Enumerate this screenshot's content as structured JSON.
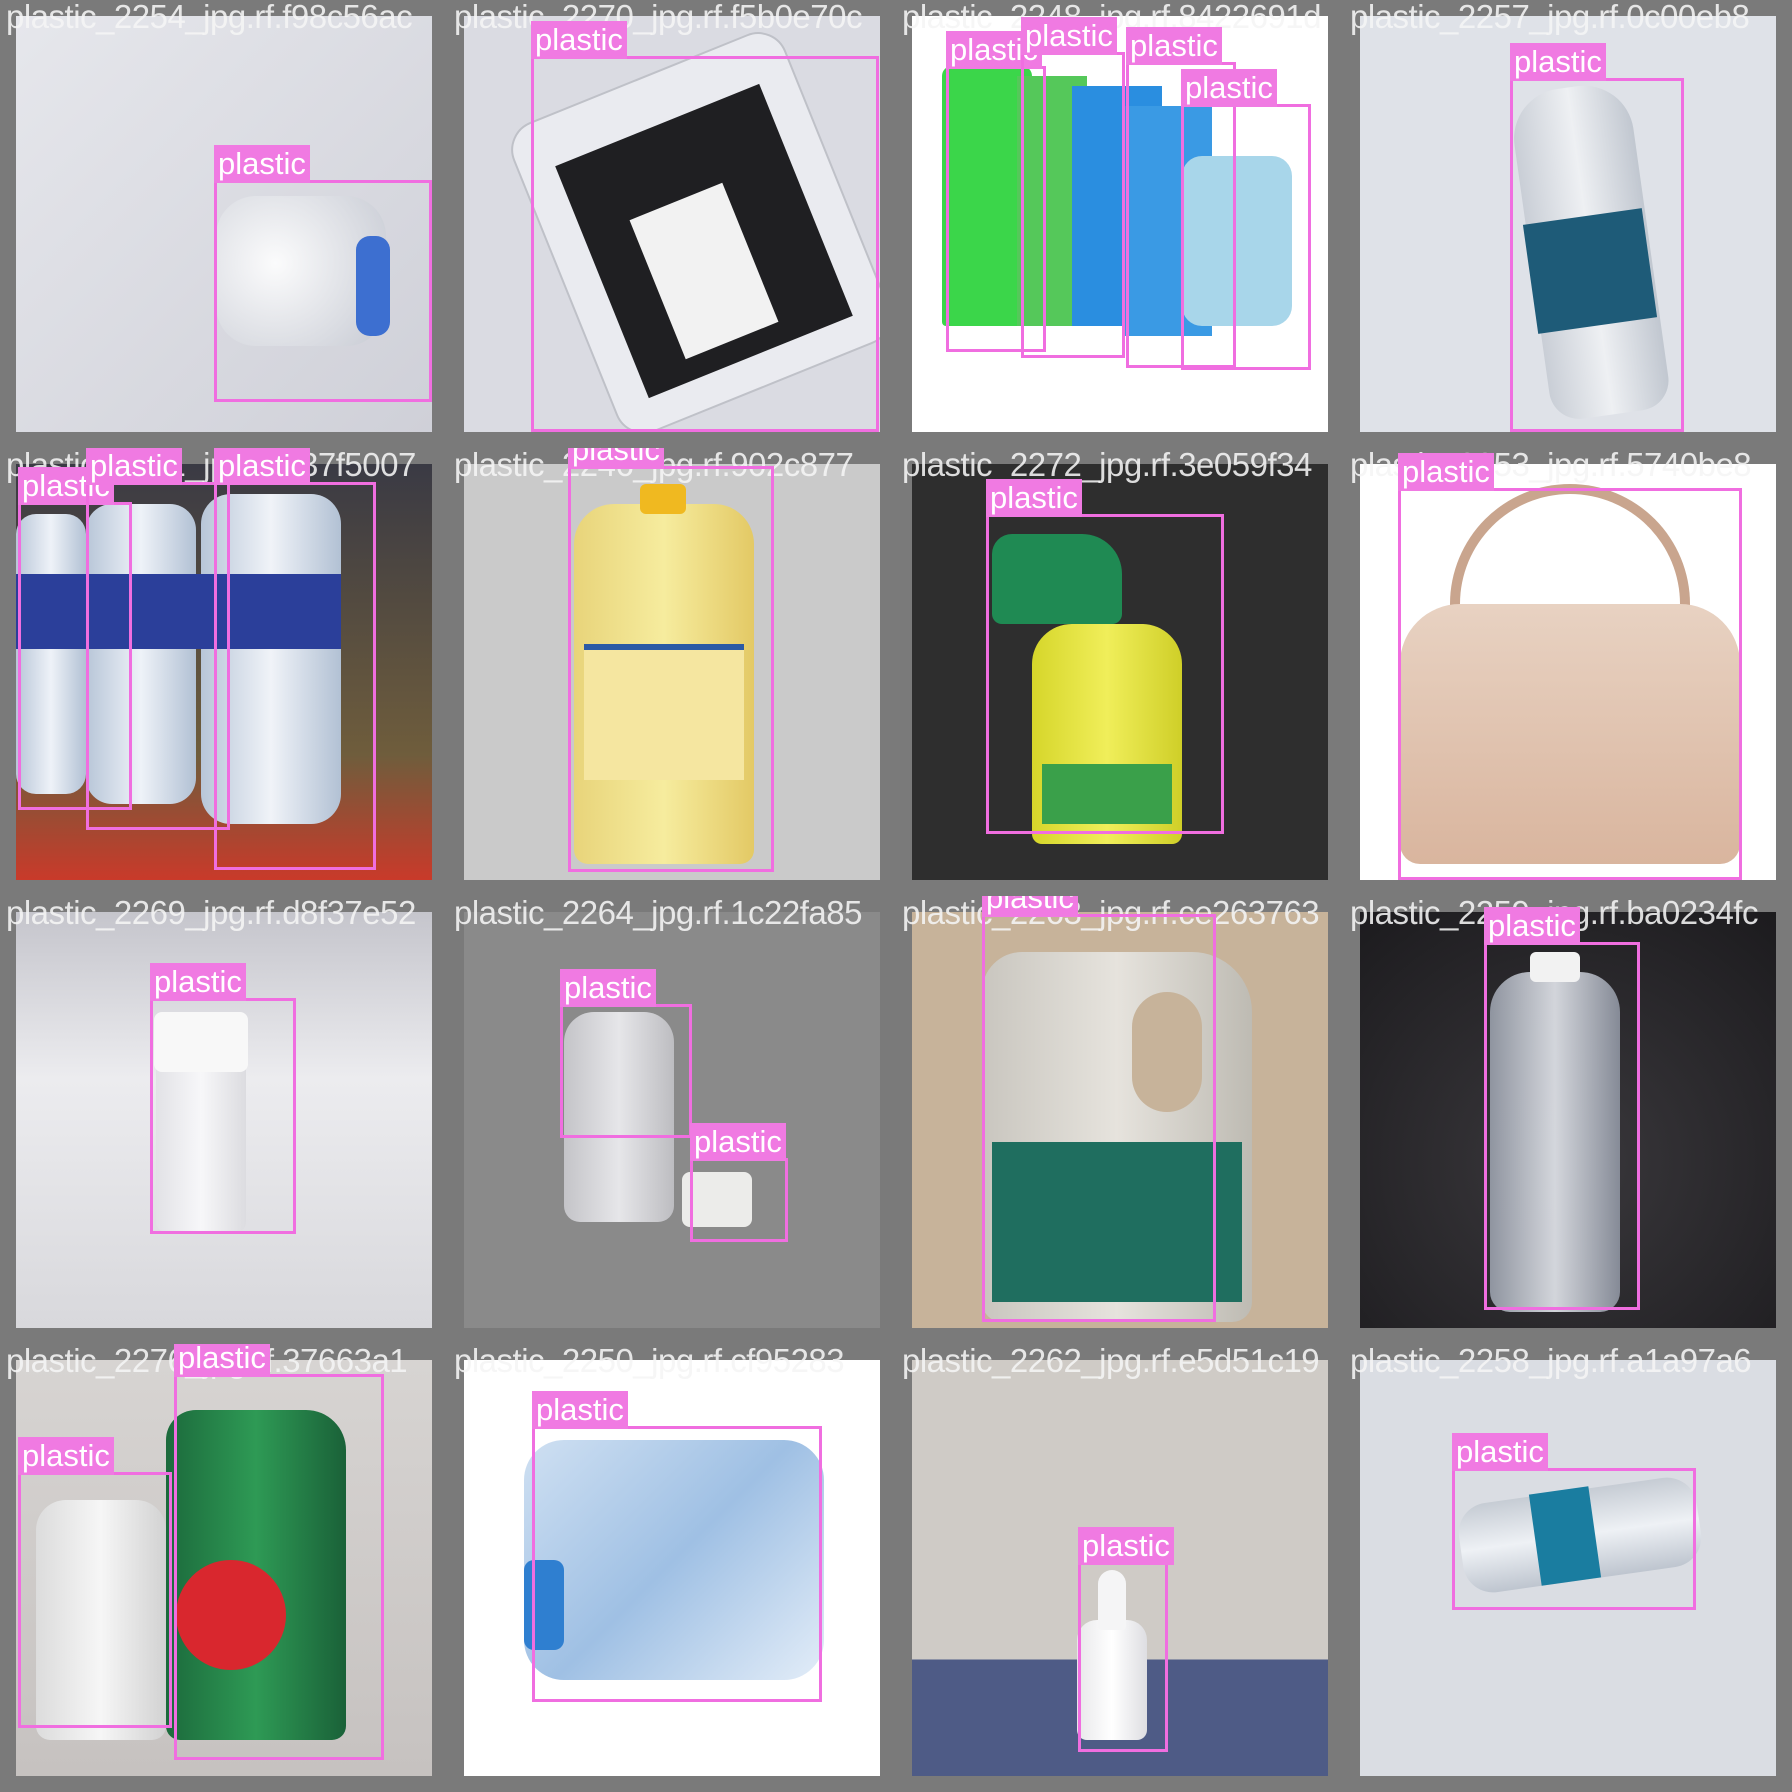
{
  "label_color": "#f06ee0",
  "class_label": "plastic",
  "tiles": [
    {
      "caption": "plastic_2254_jpg.rf.f98c56ac",
      "labels": [
        "plastic"
      ],
      "background": "#dcdde3"
    },
    {
      "caption": "plastic_2270_jpg.rf.f5b0e70c",
      "labels": [
        "plastic"
      ],
      "background": "#d8d9e1"
    },
    {
      "caption": "plastic_2248_jpg.rf.8422691d",
      "labels": [
        "plastic",
        "plastic",
        "plastic",
        "plastic"
      ],
      "background": "#ffffff"
    },
    {
      "caption": "plastic_2257_jpg.rf.0c00eb8",
      "labels": [
        "plastic"
      ],
      "background": "#dde0e6"
    },
    {
      "caption": "plastic_2261_jpg.rf.d37f5007",
      "labels": [
        "plastic",
        "plastic",
        "plastic"
      ],
      "background": "#6f5d3c"
    },
    {
      "caption": "plastic_2246_jpg.rf.902c877",
      "labels": [
        "plastic"
      ],
      "background": "#c9c9c9"
    },
    {
      "caption": "plastic_2272_jpg.rf.3e059f34",
      "labels": [
        "plastic"
      ],
      "background": "#2f2f2f"
    },
    {
      "caption": "plastic_2253_jpg.rf.5740be8",
      "labels": [
        "plastic"
      ],
      "background": "#ffffff"
    },
    {
      "caption": "plastic_2269_jpg.rf.d8f37e52",
      "labels": [
        "plastic"
      ],
      "background": "#d9d9dd"
    },
    {
      "caption": "plastic_2264_jpg.rf.1c22fa85",
      "labels": [
        "plastic",
        "plastic"
      ],
      "background": "#8a8a8a"
    },
    {
      "caption": "plastic_2263_jpg.rf.ce263763",
      "labels": [
        "plastic"
      ],
      "background": "#c7b39a"
    },
    {
      "caption": "plastic_2259_jpg.rf.ba0234fc",
      "labels": [
        "plastic"
      ],
      "background": "#242226"
    },
    {
      "caption": "plastic_2276_jpg.rf.37663a1",
      "labels": [
        "plastic",
        "plastic"
      ],
      "background": "#d7d4d2"
    },
    {
      "caption": "plastic_2250_jpg.rf.cf95283",
      "labels": [
        "plastic"
      ],
      "background": "#ffffff"
    },
    {
      "caption": "plastic_2262_jpg.rf.e5d51c19",
      "labels": [
        "plastic"
      ],
      "background": "#cfcbc6"
    },
    {
      "caption": "plastic_2258_jpg.rf.a1a97a6",
      "labels": [
        "plastic"
      ],
      "background": "#dadde3"
    }
  ]
}
